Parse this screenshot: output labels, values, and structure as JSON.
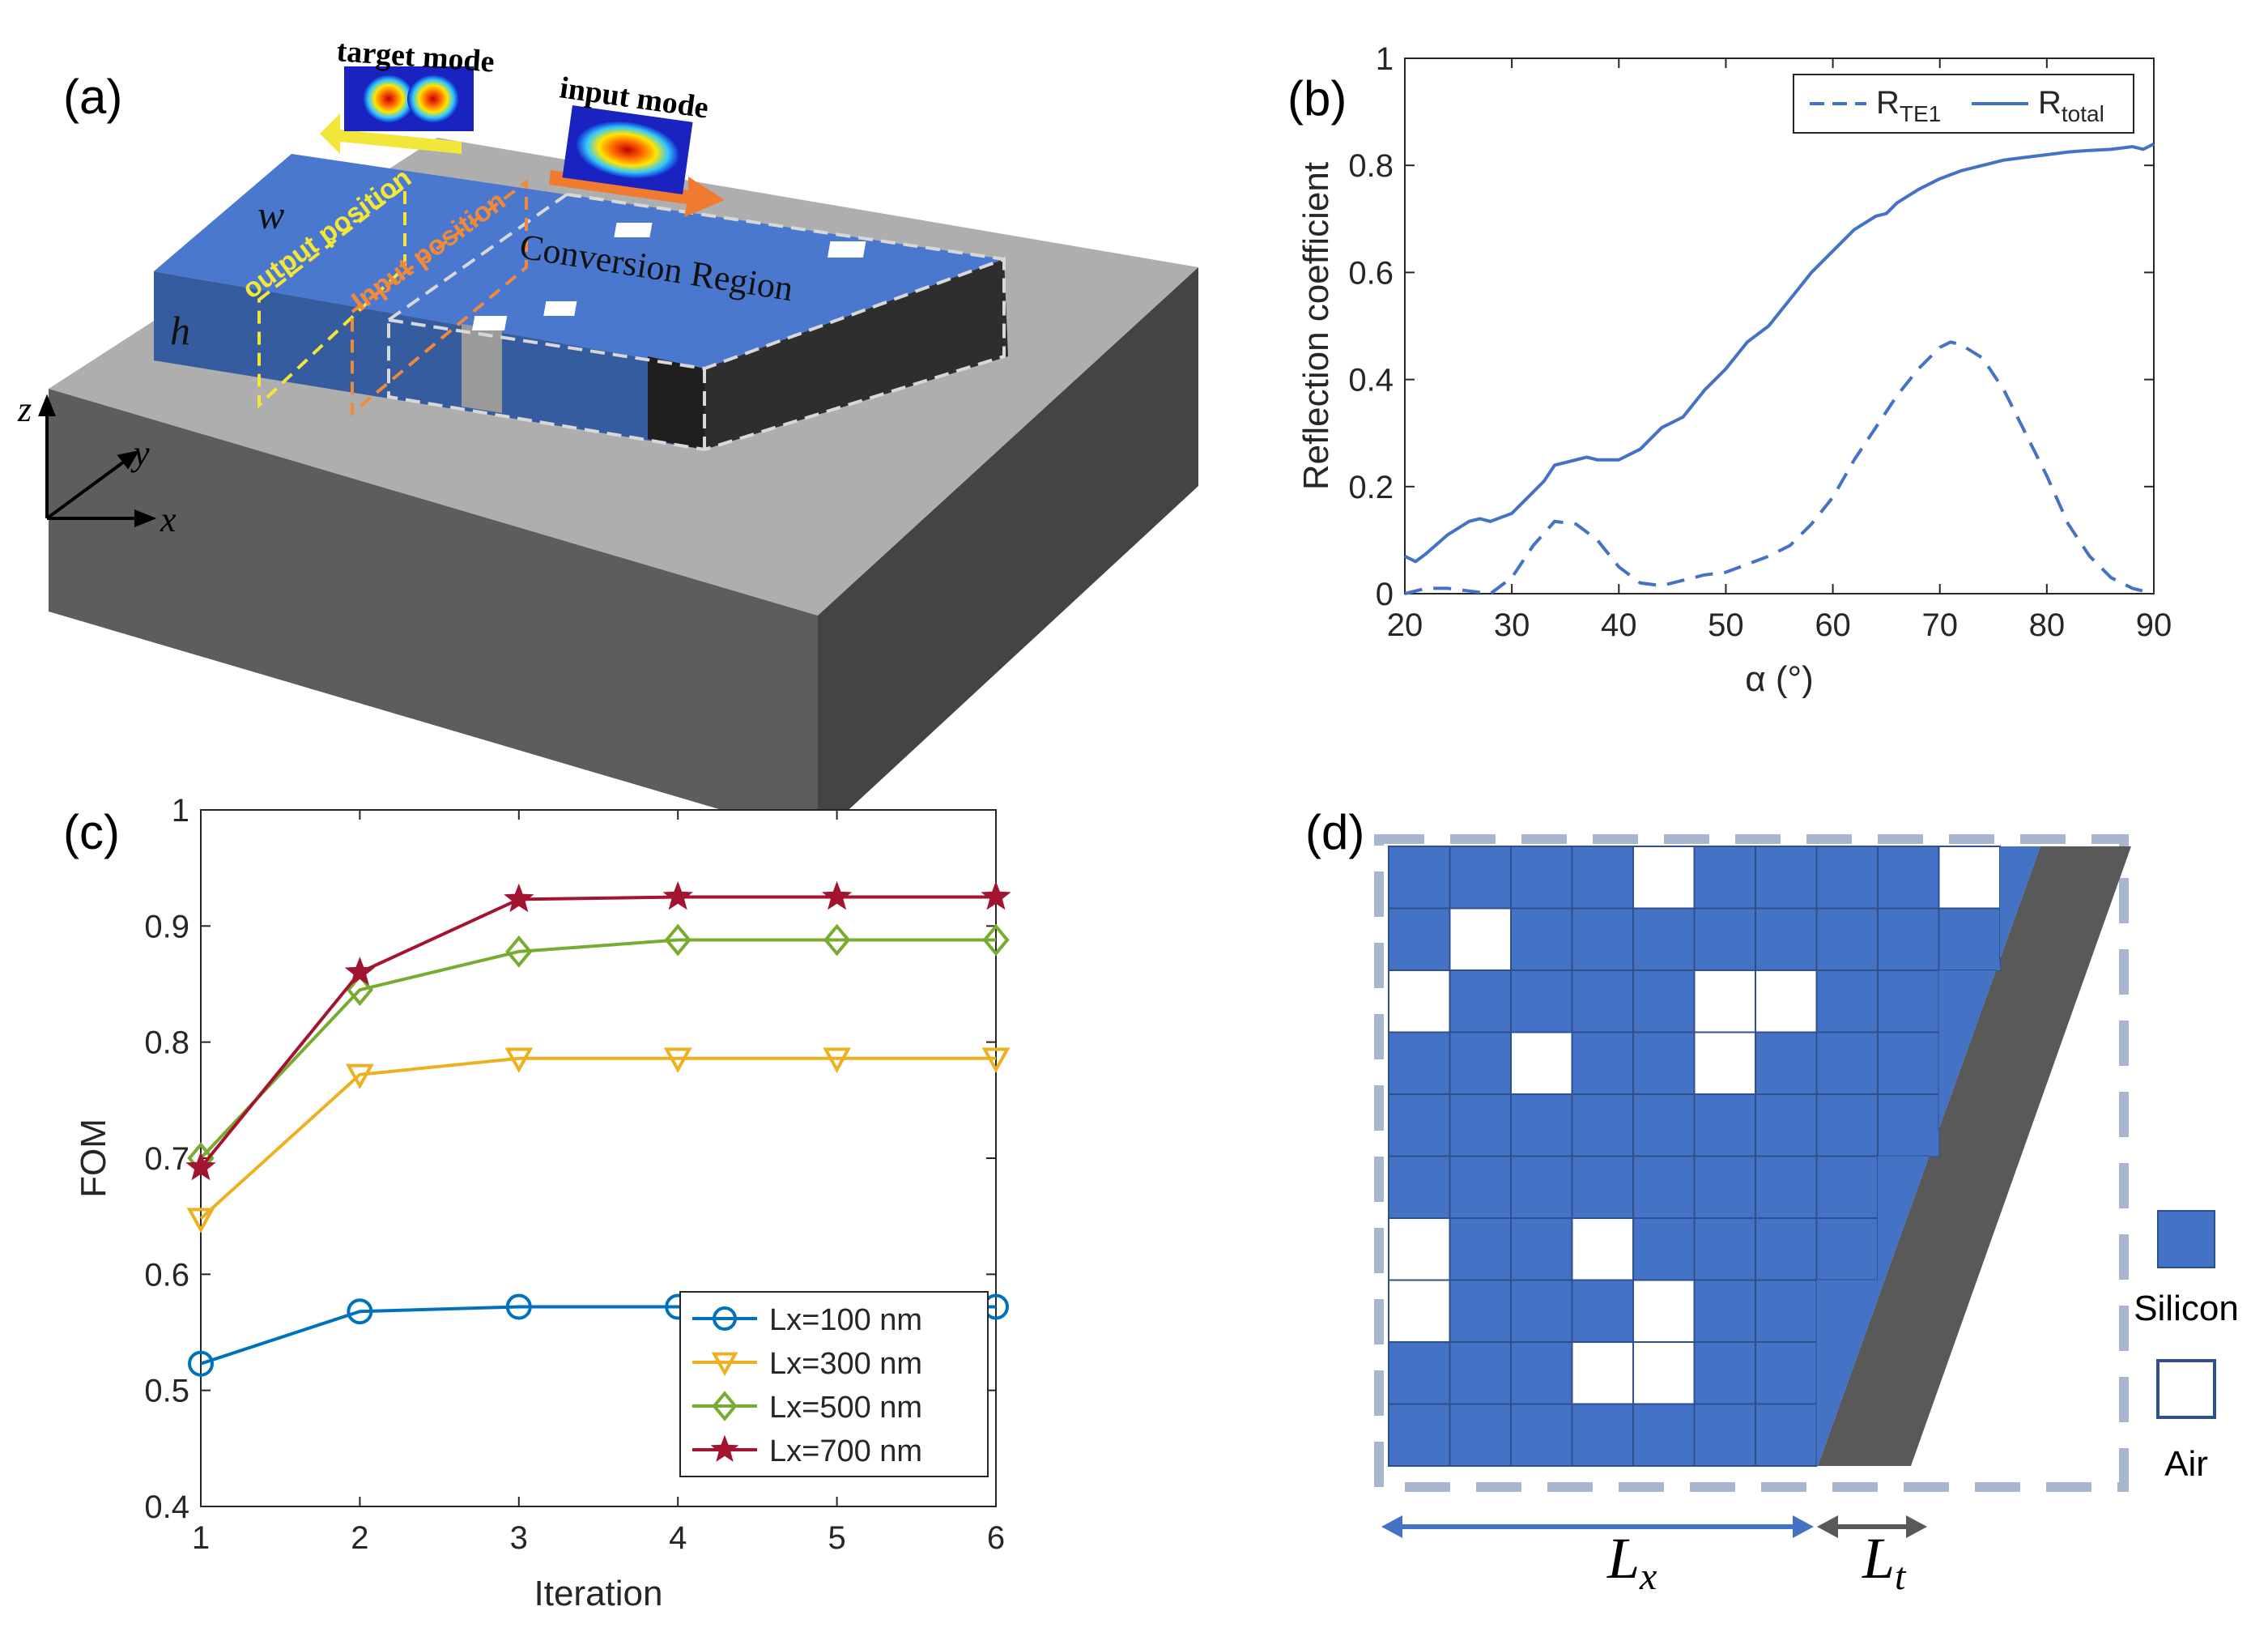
{
  "panels": {
    "a": {
      "label": "(a)",
      "target_mode": "target mode",
      "input_mode": "input mode",
      "output_position": "output position",
      "input_position": "Input position",
      "conversion_region": "Conversion Region",
      "w": "w",
      "h": "h",
      "axis_x": "x",
      "axis_y": "y",
      "axis_z": "z"
    },
    "b": {
      "label": "(b)"
    },
    "c": {
      "label": "(c)"
    },
    "d": {
      "label": "(d)",
      "legend_silicon": "Silicon",
      "legend_air": "Air",
      "lx_label": "L",
      "lx_sub": "x",
      "lt_label": "L",
      "lt_sub": "t",
      "grid_rows": 10,
      "grid_cols": 10,
      "air_cells": [
        [
          0,
          4
        ],
        [
          0,
          9
        ],
        [
          1,
          1
        ],
        [
          2,
          0
        ],
        [
          2,
          5
        ],
        [
          2,
          6
        ],
        [
          3,
          2
        ],
        [
          3,
          5
        ],
        [
          6,
          0
        ],
        [
          6,
          3
        ],
        [
          7,
          0
        ],
        [
          7,
          4
        ],
        [
          8,
          3
        ],
        [
          8,
          4
        ]
      ]
    }
  },
  "colors": {
    "silicon": "#4472c4",
    "line_blue": "#4472c4",
    "gray_taper": "#595959",
    "c_series": [
      "#0072bd",
      "#edb120",
      "#77ac30",
      "#a2142f"
    ]
  },
  "chart_data": [
    {
      "type": "line",
      "panel": "b",
      "xlabel": "α (°)",
      "ylabel": "Reflection coefficient",
      "xlim": [
        20,
        90
      ],
      "ylim": [
        0,
        1
      ],
      "xticks": [
        20,
        30,
        40,
        50,
        60,
        70,
        80,
        90
      ],
      "yticks": [
        0,
        0.2,
        0.4,
        0.6,
        0.8,
        1
      ],
      "series": [
        {
          "name": "R_TE1",
          "legend_main": "R",
          "legend_sub": "TE1",
          "style": "dashed",
          "x": [
            20,
            22,
            24,
            26,
            28,
            30,
            32,
            34,
            36,
            38,
            40,
            42,
            44,
            46,
            48,
            50,
            52,
            54,
            56,
            58,
            60,
            62,
            64,
            66,
            68,
            70,
            71,
            72,
            74,
            76,
            78,
            80,
            82,
            84,
            86,
            88,
            90
          ],
          "y": [
            0.0,
            0.01,
            0.01,
            0.005,
            0.0,
            0.03,
            0.09,
            0.135,
            0.13,
            0.1,
            0.05,
            0.02,
            0.015,
            0.025,
            0.035,
            0.04,
            0.055,
            0.07,
            0.09,
            0.13,
            0.18,
            0.25,
            0.31,
            0.37,
            0.42,
            0.46,
            0.47,
            0.465,
            0.44,
            0.38,
            0.3,
            0.22,
            0.13,
            0.07,
            0.03,
            0.01,
            0.0
          ]
        },
        {
          "name": "R_total",
          "legend_main": "R",
          "legend_sub": "total",
          "style": "solid",
          "x": [
            20,
            21,
            22,
            24,
            26,
            27,
            28,
            30,
            32,
            33,
            34,
            35,
            36,
            37,
            38,
            40,
            42,
            44,
            46,
            48,
            50,
            52,
            54,
            56,
            58,
            60,
            62,
            64,
            65,
            66,
            68,
            70,
            72,
            74,
            76,
            78,
            80,
            82,
            84,
            86,
            88,
            89,
            90
          ],
          "y": [
            0.07,
            0.06,
            0.075,
            0.11,
            0.135,
            0.14,
            0.135,
            0.15,
            0.19,
            0.21,
            0.24,
            0.245,
            0.25,
            0.255,
            0.25,
            0.25,
            0.27,
            0.31,
            0.33,
            0.38,
            0.42,
            0.47,
            0.5,
            0.55,
            0.6,
            0.64,
            0.68,
            0.705,
            0.71,
            0.73,
            0.755,
            0.775,
            0.79,
            0.8,
            0.81,
            0.815,
            0.82,
            0.825,
            0.828,
            0.83,
            0.835,
            0.83,
            0.84
          ]
        }
      ]
    },
    {
      "type": "line",
      "panel": "c",
      "xlabel": "Iteration",
      "ylabel": "FOM",
      "xlim": [
        1,
        6
      ],
      "ylim": [
        0.4,
        1
      ],
      "xticks": [
        1,
        2,
        3,
        4,
        5,
        6
      ],
      "yticks": [
        0.4,
        0.5,
        0.6,
        0.7,
        0.8,
        0.9,
        1
      ],
      "x": [
        1,
        2,
        3,
        4,
        5,
        6
      ],
      "series": [
        {
          "name": "Lx=100 nm",
          "marker": "circle",
          "values": [
            0.523,
            0.568,
            0.572,
            0.572,
            0.572,
            0.572
          ]
        },
        {
          "name": "Lx=300 nm",
          "marker": "triangle-down",
          "values": [
            0.648,
            0.772,
            0.786,
            0.786,
            0.786,
            0.786
          ]
        },
        {
          "name": "Lx=500 nm",
          "marker": "diamond",
          "values": [
            0.7,
            0.845,
            0.878,
            0.888,
            0.888,
            0.888
          ]
        },
        {
          "name": "Lx=700 nm",
          "marker": "star",
          "values": [
            0.692,
            0.86,
            0.923,
            0.925,
            0.925,
            0.925
          ]
        }
      ]
    }
  ]
}
